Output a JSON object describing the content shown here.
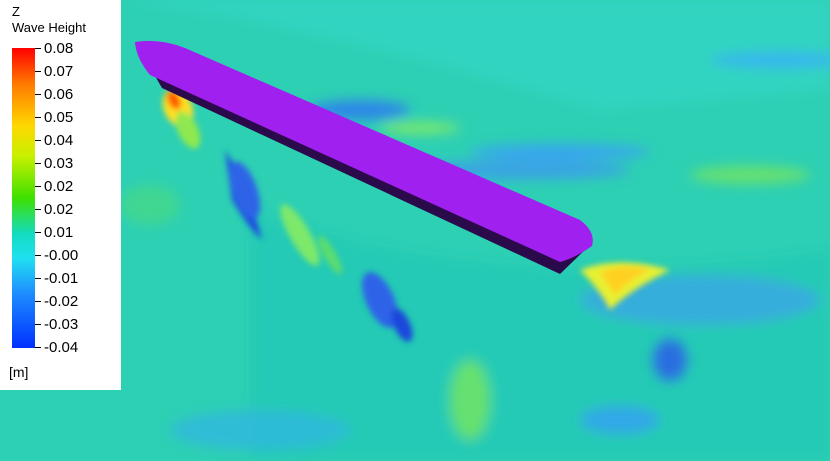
{
  "legend": {
    "axis_name": "Z",
    "title": "Wave Height",
    "unit": "[m]",
    "ticks": [
      "0.08",
      "0.07",
      "0.06",
      "0.05",
      "0.04",
      "0.03",
      "0.02",
      "0.02",
      "0.01",
      "-0.00",
      "-0.01",
      "-0.02",
      "-0.03",
      "-0.04"
    ],
    "colors": {
      "max": "#ff0000",
      "high": "#ffd800",
      "mid": "#3fe000",
      "zero": "#12dcc0",
      "low": "#1d8cff",
      "min": "#0030ff"
    }
  },
  "scene": {
    "hull_deck_color": "#a020f0",
    "hull_side_color": "#2a0a4a",
    "background_color": "#2ed0b4"
  }
}
